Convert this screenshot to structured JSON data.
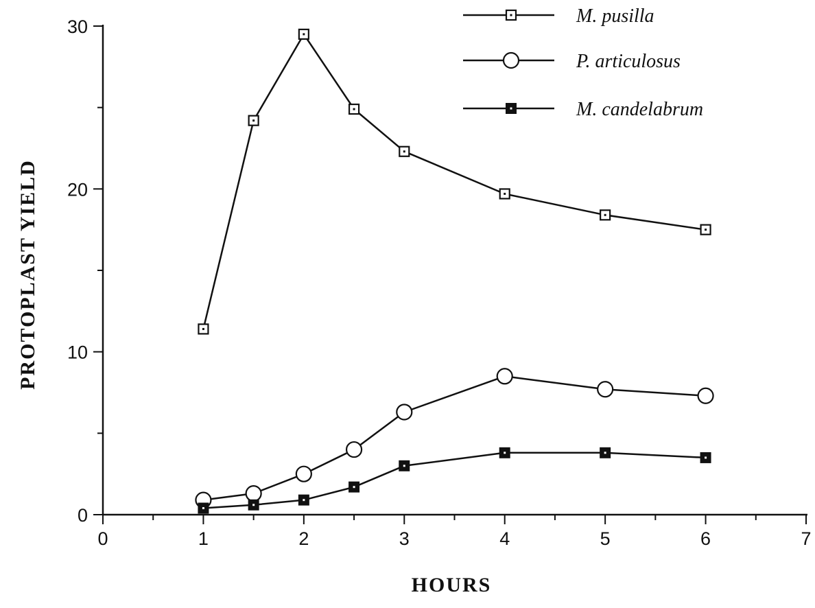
{
  "chart_data": {
    "type": "line",
    "xlabel": "HOURS",
    "ylabel": "PROTOPLAST YIELD",
    "xlim": [
      0,
      7
    ],
    "ylim": [
      0,
      30
    ],
    "x_ticks": [
      "0",
      "1",
      "2",
      "3",
      "4",
      "5",
      "6",
      "7"
    ],
    "y_ticks": [
      "0",
      "10",
      "20",
      "30"
    ],
    "grid": false,
    "legend_position": "top-right",
    "series": [
      {
        "name": "M. pusilla",
        "marker": "open-square",
        "x": [
          1,
          1.5,
          2,
          2.5,
          3,
          4,
          5,
          6
        ],
        "y": [
          11.4,
          24.2,
          29.5,
          24.9,
          22.3,
          19.7,
          18.4,
          17.5
        ]
      },
      {
        "name": "P. articulosus",
        "marker": "open-circle",
        "x": [
          1,
          1.5,
          2,
          2.5,
          3,
          4,
          5,
          6
        ],
        "y": [
          0.9,
          1.3,
          2.5,
          4.0,
          6.3,
          8.5,
          7.7,
          7.3
        ]
      },
      {
        "name": "M. candelabrum",
        "marker": "filled-square",
        "x": [
          1,
          1.5,
          2,
          2.5,
          3,
          4,
          5,
          6
        ],
        "y": [
          0.4,
          0.6,
          0.9,
          1.7,
          3.0,
          3.8,
          3.8,
          3.5
        ]
      }
    ]
  }
}
